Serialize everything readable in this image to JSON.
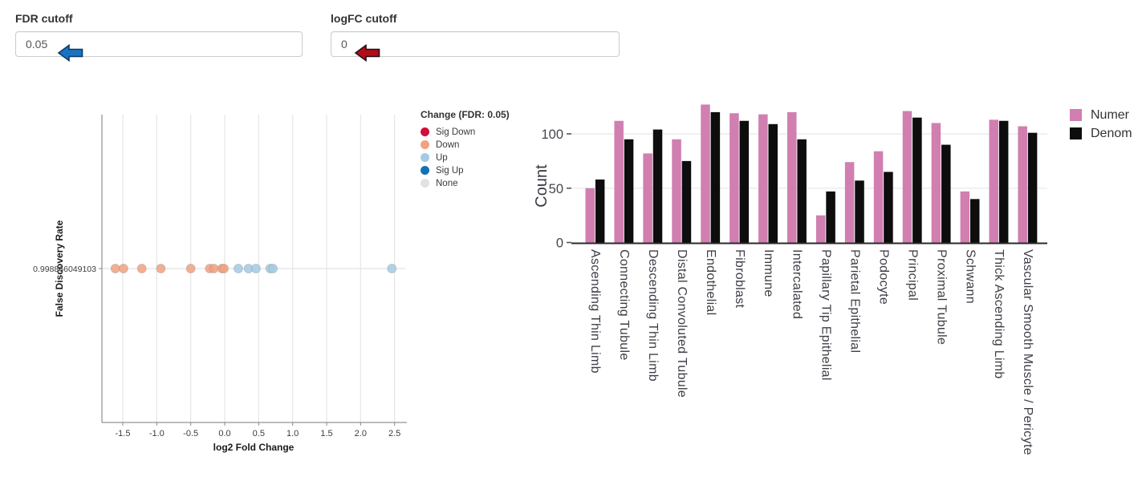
{
  "controls": {
    "fdr": {
      "label": "FDR cutoff",
      "value": "0.05",
      "arrow": {
        "fill": "#1a72c4",
        "stroke": "#0d3b64"
      }
    },
    "logfc": {
      "label": "logFC cutoff",
      "value": "0",
      "arrow": {
        "fill": "#b30d18",
        "stroke": "#23101a"
      }
    }
  },
  "chart_data": [
    {
      "type": "scatter",
      "title": "",
      "xlabel": "log2 Fold Change",
      "ylabel": "False Discovery Rate",
      "xlim": [
        -1.8,
        2.68
      ],
      "x_ticks": [
        -1.5,
        -1.0,
        -0.5,
        0.0,
        0.5,
        1.0,
        1.5,
        2.0,
        2.5
      ],
      "x_tick_labels": [
        "-1.5",
        "-1.0",
        "-0.5",
        "0.0",
        "0.5",
        "1.0",
        "1.5",
        "2.0",
        "2.5"
      ],
      "y_tick_label": "0.998866049103",
      "y_value": "0.998866049103",
      "grid": true,
      "legend": {
        "title": "Change (FDR: 0.05)",
        "position": "right",
        "items": [
          {
            "label": "Sig Down",
            "color": "#d10e3c"
          },
          {
            "label": "Down",
            "color": "#f2a17f"
          },
          {
            "label": "Up",
            "color": "#a3cbe5"
          },
          {
            "label": "Sig Up",
            "color": "#1472b4"
          },
          {
            "label": "None",
            "color": "#e2e2e2"
          }
        ]
      },
      "series": [
        {
          "name": "Down",
          "color": "#f2a17f",
          "x": [
            -1.61,
            -1.49,
            -1.22,
            -0.94,
            -0.5,
            -0.22,
            -0.16,
            -0.04,
            -0.01
          ]
        },
        {
          "name": "Up",
          "color": "#a3cbe5",
          "x": [
            0.2,
            0.35,
            0.46,
            0.67,
            0.71,
            2.46
          ]
        }
      ]
    },
    {
      "type": "bar",
      "title": "",
      "xlabel": "",
      "ylabel": "Count",
      "ylim": [
        0,
        130
      ],
      "y_ticks": [
        0,
        50,
        100
      ],
      "y_tick_labels": [
        "0",
        "50",
        "100"
      ],
      "grid": true,
      "legend_position": "right",
      "categories": [
        "Ascending Thin Limb",
        "Connecting Tubule",
        "Descending Thin Limb",
        "Distal Convoluted Tubule",
        "Endothelial",
        "Fibroblast",
        "Immune",
        "Intercalated",
        "Papillary Tip Epithelial",
        "Parietal Epithelial",
        "Podocyte",
        "Principal",
        "Proximal Tubule",
        "Schwann",
        "Thick Ascending Limb",
        "Vascular Smooth Muscle / Pericyte"
      ],
      "series": [
        {
          "name": "Numer",
          "color": "#d07fb0",
          "values": [
            50,
            112,
            82,
            95,
            127,
            119,
            118,
            120,
            25,
            74,
            84,
            121,
            110,
            47,
            113,
            107
          ]
        },
        {
          "name": "Denom",
          "color": "#0d0d0d",
          "values": [
            58,
            95,
            104,
            75,
            120,
            112,
            109,
            95,
            47,
            57,
            65,
            115,
            90,
            40,
            112,
            101
          ]
        }
      ]
    }
  ]
}
